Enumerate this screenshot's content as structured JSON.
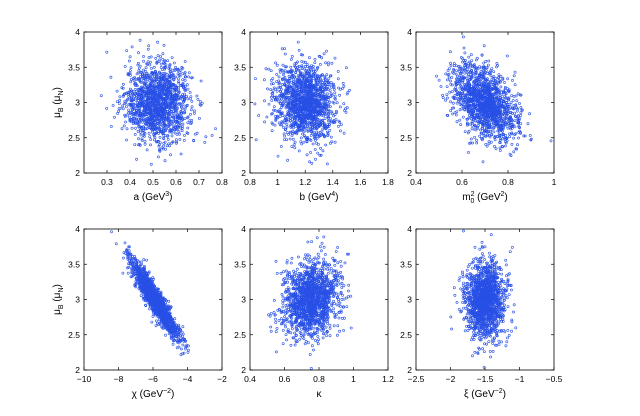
{
  "chart_data": [
    {
      "type": "scatter",
      "xlabel": "a (GeV3)",
      "xlabel_parts": {
        "main": "a (GeV",
        "sup": "3",
        "tail": ")"
      },
      "ylabel": "μB (μN)",
      "xlim": [
        0.2,
        0.8
      ],
      "ylim": [
        2,
        4
      ],
      "xticks": [
        "0.3",
        "0.4",
        "0.5",
        "0.6",
        "0.7",
        "0.8"
      ],
      "xtick_values": [
        0.3,
        0.4,
        0.5,
        0.6,
        0.7,
        0.8
      ],
      "yticks": [
        "2",
        "2.5",
        "3",
        "3.5",
        "4"
      ],
      "ytick_values": [
        2,
        2.5,
        3,
        3.5,
        4
      ],
      "points_summary": {
        "n": 1500,
        "x_mean": 0.52,
        "x_sd": 0.07,
        "y_mean": 3.0,
        "y_sd": 0.27,
        "correlation": 0.0
      },
      "marker_color": "#2850e6"
    },
    {
      "type": "scatter",
      "xlabel": "b (GeV4)",
      "xlabel_parts": {
        "main": "b (GeV",
        "sup": "4",
        "tail": ")"
      },
      "ylabel": "",
      "xlim": [
        0.8,
        1.8
      ],
      "ylim": [
        2,
        4
      ],
      "xticks": [
        "0.8",
        "1",
        "1.2",
        "1.4",
        "1.6",
        "1.8"
      ],
      "xtick_values": [
        0.8,
        1.0,
        1.2,
        1.4,
        1.6,
        1.8
      ],
      "yticks": [
        "2",
        "2.5",
        "3",
        "3.5",
        "4"
      ],
      "ytick_values": [
        2,
        2.5,
        3,
        3.5,
        4
      ],
      "points_summary": {
        "n": 1500,
        "x_mean": 1.2,
        "x_sd": 0.11,
        "y_mean": 3.0,
        "y_sd": 0.27,
        "correlation": -0.1
      },
      "marker_color": "#2850e6"
    },
    {
      "type": "scatter",
      "xlabel": "m02 (GeV2)",
      "xlabel_parts": {
        "main": "m",
        "sup": "2",
        "sub": "0",
        "tail": " (GeV",
        "sup2": "2",
        "tail2": ")"
      },
      "ylabel": "",
      "xlim": [
        0.4,
        1.0
      ],
      "ylim": [
        2,
        4
      ],
      "xticks": [
        "0.4",
        "0.6",
        "0.8",
        "1"
      ],
      "xtick_values": [
        0.4,
        0.6,
        0.8,
        1.0
      ],
      "yticks": [
        "2",
        "2.5",
        "3",
        "3.5",
        "4"
      ],
      "ytick_values": [
        2,
        2.5,
        3,
        3.5,
        4
      ],
      "points_summary": {
        "n": 1500,
        "x_mean": 0.7,
        "x_sd": 0.07,
        "y_mean": 3.0,
        "y_sd": 0.27,
        "correlation": -0.4
      },
      "marker_color": "#2850e6"
    },
    {
      "type": "scatter",
      "xlabel": "χ (GeV-2)",
      "xlabel_parts": {
        "main": "χ (GeV",
        "sup": "−2",
        "tail": ")"
      },
      "ylabel": "μB (μN)",
      "xlim": [
        -10,
        -2
      ],
      "ylim": [
        2,
        4
      ],
      "xticks": [
        "−10",
        "−8",
        "−6",
        "−4",
        "−2"
      ],
      "xtick_values": [
        -10,
        -8,
        -6,
        -4,
        -2
      ],
      "yticks": [
        "2",
        "2.5",
        "3",
        "3.5",
        "4"
      ],
      "ytick_values": [
        2,
        2.5,
        3,
        3.5,
        4
      ],
      "points_summary": {
        "n": 1500,
        "x_mean": -5.9,
        "x_sd": 0.7,
        "y_mean": 3.0,
        "y_sd": 0.28,
        "correlation": -0.93
      },
      "marker_color": "#2850e6"
    },
    {
      "type": "scatter",
      "xlabel": "κ",
      "xlabel_parts": {
        "main": "κ"
      },
      "ylabel": "",
      "xlim": [
        0.4,
        1.2
      ],
      "ylim": [
        2,
        4
      ],
      "xticks": [
        "0.4",
        "0.6",
        "0.8",
        "1",
        "1.2"
      ],
      "xtick_values": [
        0.4,
        0.6,
        0.8,
        1.0,
        1.2
      ],
      "yticks": [
        "2",
        "2.5",
        "3",
        "3.5",
        "4"
      ],
      "ytick_values": [
        2,
        2.5,
        3,
        3.5,
        4
      ],
      "points_summary": {
        "n": 1500,
        "x_mean": 0.75,
        "x_sd": 0.08,
        "y_mean": 3.0,
        "y_sd": 0.27,
        "correlation": 0.2
      },
      "marker_color": "#2850e6"
    },
    {
      "type": "scatter",
      "xlabel": "ξ (GeV-2)",
      "xlabel_parts": {
        "main": "ξ (GeV",
        "sup": "−2",
        "tail": ")"
      },
      "ylabel": "",
      "xlim": [
        -2.5,
        -0.5
      ],
      "ylim": [
        2,
        4
      ],
      "xticks": [
        "−2.5",
        "−2",
        "−1.5",
        "−1",
        "−0.5"
      ],
      "xtick_values": [
        -2.5,
        -2.0,
        -1.5,
        -1.0,
        -0.5
      ],
      "yticks": [
        "2",
        "2.5",
        "3",
        "3.5",
        "4"
      ],
      "ytick_values": [
        2,
        2.5,
        3,
        3.5,
        4
      ],
      "points_summary": {
        "n": 1500,
        "x_mean": -1.5,
        "x_sd": 0.14,
        "y_mean": 3.0,
        "y_sd": 0.27,
        "correlation": 0.0
      },
      "marker_color": "#2850e6"
    }
  ]
}
